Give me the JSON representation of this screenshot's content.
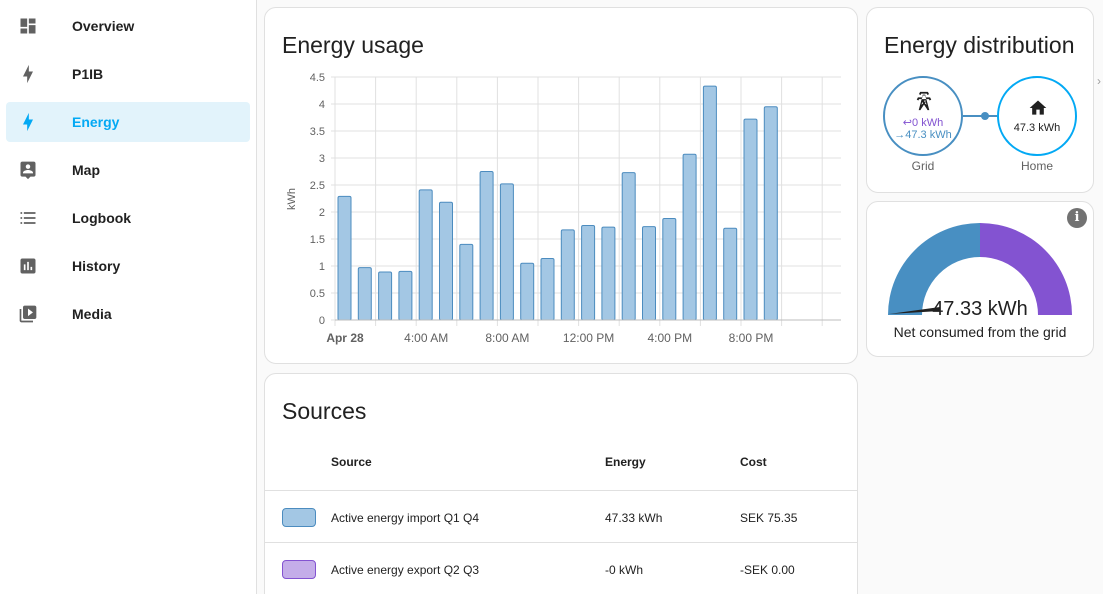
{
  "sidebar": {
    "items": [
      {
        "label": "Overview",
        "icon": "dashboard-icon"
      },
      {
        "label": "P1IB",
        "icon": "lightning-bolt-icon"
      },
      {
        "label": "Energy",
        "icon": "lightning-bolt-icon",
        "active": true
      },
      {
        "label": "Map",
        "icon": "map-person-icon"
      },
      {
        "label": "Logbook",
        "icon": "format-list-bulleted-icon"
      },
      {
        "label": "History",
        "icon": "chart-box-icon"
      },
      {
        "label": "Media",
        "icon": "play-box-multiple-icon"
      }
    ]
  },
  "usage": {
    "title": "Energy usage"
  },
  "chart_data": {
    "type": "bar",
    "ylabel": "kWh",
    "xlabel": "",
    "ylim": [
      0,
      4.5
    ],
    "yticks": [
      "0",
      "0.5",
      "1",
      "1.5",
      "2",
      "2.5",
      "3",
      "3.5",
      "4",
      "4.5"
    ],
    "xticks": [
      "Apr 28",
      "4:00 AM",
      "8:00 AM",
      "12:00 PM",
      "4:00 PM",
      "8:00 PM"
    ],
    "grid": true,
    "bar_color": "#a3c7e4",
    "bar_border": "#4c8cbf",
    "values": [
      2.29,
      0.97,
      0.89,
      0.9,
      2.41,
      2.18,
      1.4,
      2.75,
      2.52,
      1.05,
      1.14,
      1.67,
      1.75,
      1.72,
      2.73,
      1.73,
      1.88,
      3.07,
      4.33,
      1.7,
      3.72,
      3.95
    ]
  },
  "distribution": {
    "title": "Energy distribution",
    "grid": {
      "label": "Grid",
      "returned": "0 kWh",
      "consumed": "47.3 kWh",
      "icon": "transmission-tower-icon"
    },
    "home": {
      "label": "Home",
      "value": "47.3 kWh",
      "icon": "home-icon"
    },
    "colors": {
      "grid": "#488fc2",
      "return": "#8353d1",
      "home": "#03a9f4"
    }
  },
  "gauge": {
    "value": "47.33 kWh",
    "label": "Net consumed from the grid",
    "consumed_fraction": 0.5,
    "colors": {
      "consumed": "#488fc2",
      "returned": "#8353d1"
    }
  },
  "sources": {
    "title": "Sources",
    "headers": {
      "source": "Source",
      "energy": "Energy",
      "cost": "Cost"
    },
    "rows": [
      {
        "name": "Active energy import Q1 Q4",
        "energy": "47.33 kWh",
        "cost": "SEK 75.35",
        "color": "#a3c7e4",
        "border": "#4c8cbf"
      },
      {
        "name": "Active energy export Q2 Q3",
        "energy": "-0 kWh",
        "cost": "-SEK 0.00",
        "color": "#c4ade9",
        "border": "#8353d1"
      }
    ]
  }
}
